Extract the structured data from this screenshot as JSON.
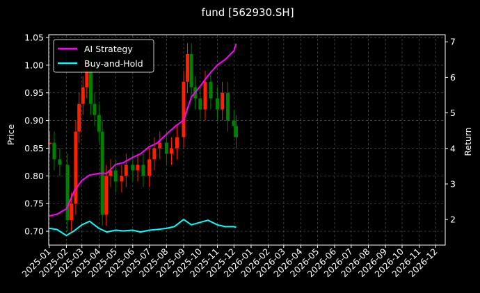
{
  "chart_data": {
    "type": "line",
    "title": "fund [562930.SH]",
    "xlabel": "",
    "ylabel": "Price",
    "ylabel_right": "Return",
    "grid": true,
    "legend_position": "top-left",
    "colors": {
      "background": "#000000",
      "ai_strategy": "#ff00ff",
      "buy_hold": "#00ffff",
      "candle_up": "#ff2000",
      "candle_down": "#008000",
      "grid": "#555555",
      "text": "#ffffff"
    },
    "x_ticks": [
      "2025-01",
      "2025-02",
      "2025-03",
      "2025-04",
      "2025-05",
      "2025-06",
      "2025-07",
      "2025-08",
      "2025-09",
      "2025-10",
      "2025-11",
      "2025-12",
      "2026-01",
      "2026-02",
      "2026-03",
      "2026-04",
      "2026-05",
      "2026-06",
      "2026-07",
      "2026-08",
      "2026-09",
      "2026-10",
      "2026-11",
      "2026-12"
    ],
    "xlim": [
      "2024-12-31",
      "2026-12-18"
    ],
    "y_left_ticks": [
      "0.70",
      "0.75",
      "0.80",
      "0.85",
      "0.90",
      "0.95",
      "1.00",
      "1.05"
    ],
    "y_left_lim": [
      0.675,
      1.055
    ],
    "y_right_ticks": [
      "2",
      "3",
      "4",
      "5",
      "6",
      "7"
    ],
    "y_right_lim": [
      1.28,
      7.2
    ],
    "price_series": {
      "name": "Price",
      "style": "candlestick",
      "x": [
        "2025-01-02",
        "2025-01-10",
        "2025-01-20",
        "2025-02-03",
        "2025-02-10",
        "2025-02-18",
        "2025-02-24",
        "2025-03-03",
        "2025-03-10",
        "2025-03-17",
        "2025-03-24",
        "2025-04-01",
        "2025-04-07",
        "2025-04-14",
        "2025-04-22",
        "2025-05-01",
        "2025-05-12",
        "2025-05-20",
        "2025-06-01",
        "2025-06-10",
        "2025-06-20",
        "2025-07-01",
        "2025-07-10",
        "2025-07-20",
        "2025-08-01",
        "2025-08-10",
        "2025-08-20",
        "2025-09-01",
        "2025-09-08",
        "2025-09-15",
        "2025-09-22",
        "2025-10-01",
        "2025-10-10",
        "2025-10-20",
        "2025-11-01",
        "2025-11-10",
        "2025-11-20",
        "2025-12-01",
        "2025-12-05"
      ],
      "values": [
        0.86,
        0.83,
        0.82,
        0.72,
        0.75,
        0.88,
        0.93,
        0.96,
        0.99,
        0.93,
        0.91,
        0.88,
        0.73,
        0.8,
        0.81,
        0.79,
        0.8,
        0.82,
        0.81,
        0.82,
        0.8,
        0.83,
        0.85,
        0.86,
        0.84,
        0.85,
        0.87,
        0.97,
        1.02,
        0.96,
        0.94,
        0.92,
        0.97,
        0.94,
        0.92,
        0.95,
        0.9,
        0.89,
        0.87
      ]
    },
    "series": [
      {
        "name": "AI Strategy",
        "axis": "right",
        "x": [
          "2025-01-01",
          "2025-01-15",
          "2025-02-01",
          "2025-02-15",
          "2025-03-01",
          "2025-03-15",
          "2025-04-01",
          "2025-04-15",
          "2025-05-01",
          "2025-05-15",
          "2025-06-01",
          "2025-06-15",
          "2025-07-01",
          "2025-07-15",
          "2025-08-01",
          "2025-08-15",
          "2025-09-01",
          "2025-09-15",
          "2025-10-01",
          "2025-10-15",
          "2025-11-01",
          "2025-11-15",
          "2025-12-01",
          "2025-12-05"
        ],
        "values": [
          2.1,
          2.15,
          2.3,
          2.8,
          3.1,
          3.25,
          3.3,
          3.3,
          3.55,
          3.6,
          3.75,
          3.85,
          4.05,
          4.15,
          4.4,
          4.6,
          4.8,
          5.45,
          5.75,
          6.05,
          6.35,
          6.5,
          6.75,
          6.95
        ]
      },
      {
        "name": "Buy-and-Hold",
        "axis": "right",
        "x": [
          "2025-01-01",
          "2025-01-15",
          "2025-02-01",
          "2025-02-15",
          "2025-03-01",
          "2025-03-15",
          "2025-04-01",
          "2025-04-15",
          "2025-05-01",
          "2025-05-15",
          "2025-06-01",
          "2025-06-15",
          "2025-07-01",
          "2025-07-15",
          "2025-08-01",
          "2025-08-15",
          "2025-09-01",
          "2025-09-15",
          "2025-10-01",
          "2025-10-15",
          "2025-11-01",
          "2025-11-15",
          "2025-12-01",
          "2025-12-05"
        ],
        "values": [
          1.75,
          1.72,
          1.55,
          1.68,
          1.85,
          1.95,
          1.75,
          1.65,
          1.7,
          1.68,
          1.7,
          1.65,
          1.7,
          1.72,
          1.75,
          1.8,
          2.0,
          1.85,
          1.92,
          1.98,
          1.85,
          1.8,
          1.8,
          1.78
        ]
      }
    ]
  }
}
